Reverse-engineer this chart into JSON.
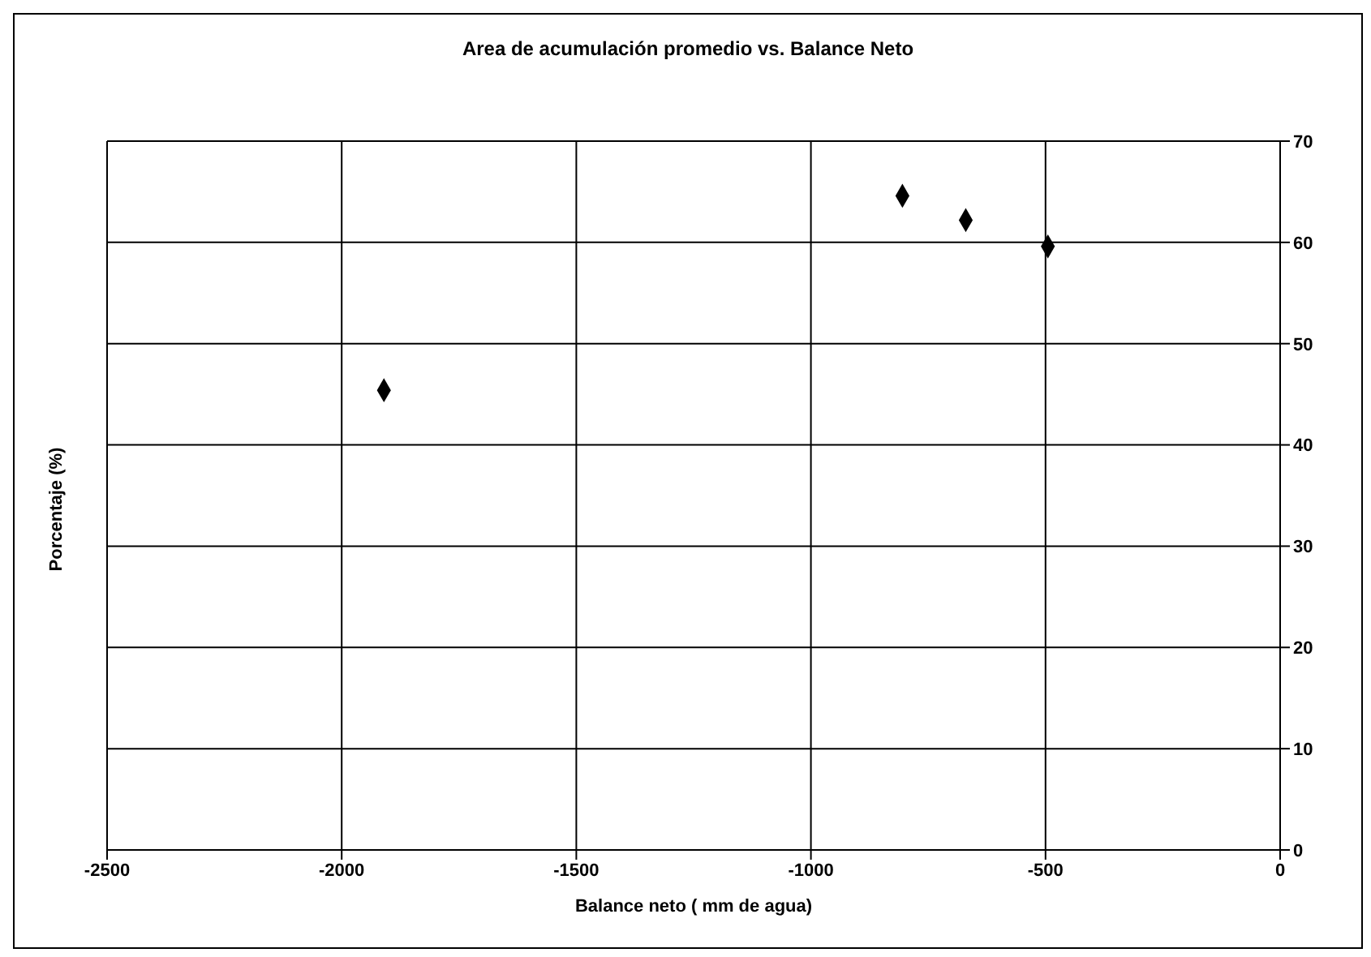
{
  "chart_data": {
    "type": "scatter",
    "title": "Area de acumulación promedio  vs. Balance Neto",
    "xlabel": "Balance neto ( mm de agua)",
    "ylabel": "Porcentaje (%)",
    "x": [
      -1910,
      -805,
      -670,
      -495
    ],
    "series": [
      {
        "color": "#000000",
        "values": [
          45.4,
          64.6,
          62.2,
          59.6
        ]
      }
    ],
    "xlim": [
      -2500,
      0
    ],
    "xticks": [
      -2500,
      -2000,
      -1500,
      -1000,
      -500,
      0
    ],
    "ylim": [
      0,
      70
    ],
    "yticks": [
      0,
      10,
      20,
      30,
      40,
      50,
      60,
      70
    ],
    "grid": true,
    "marker": "diamond",
    "legend": false
  }
}
